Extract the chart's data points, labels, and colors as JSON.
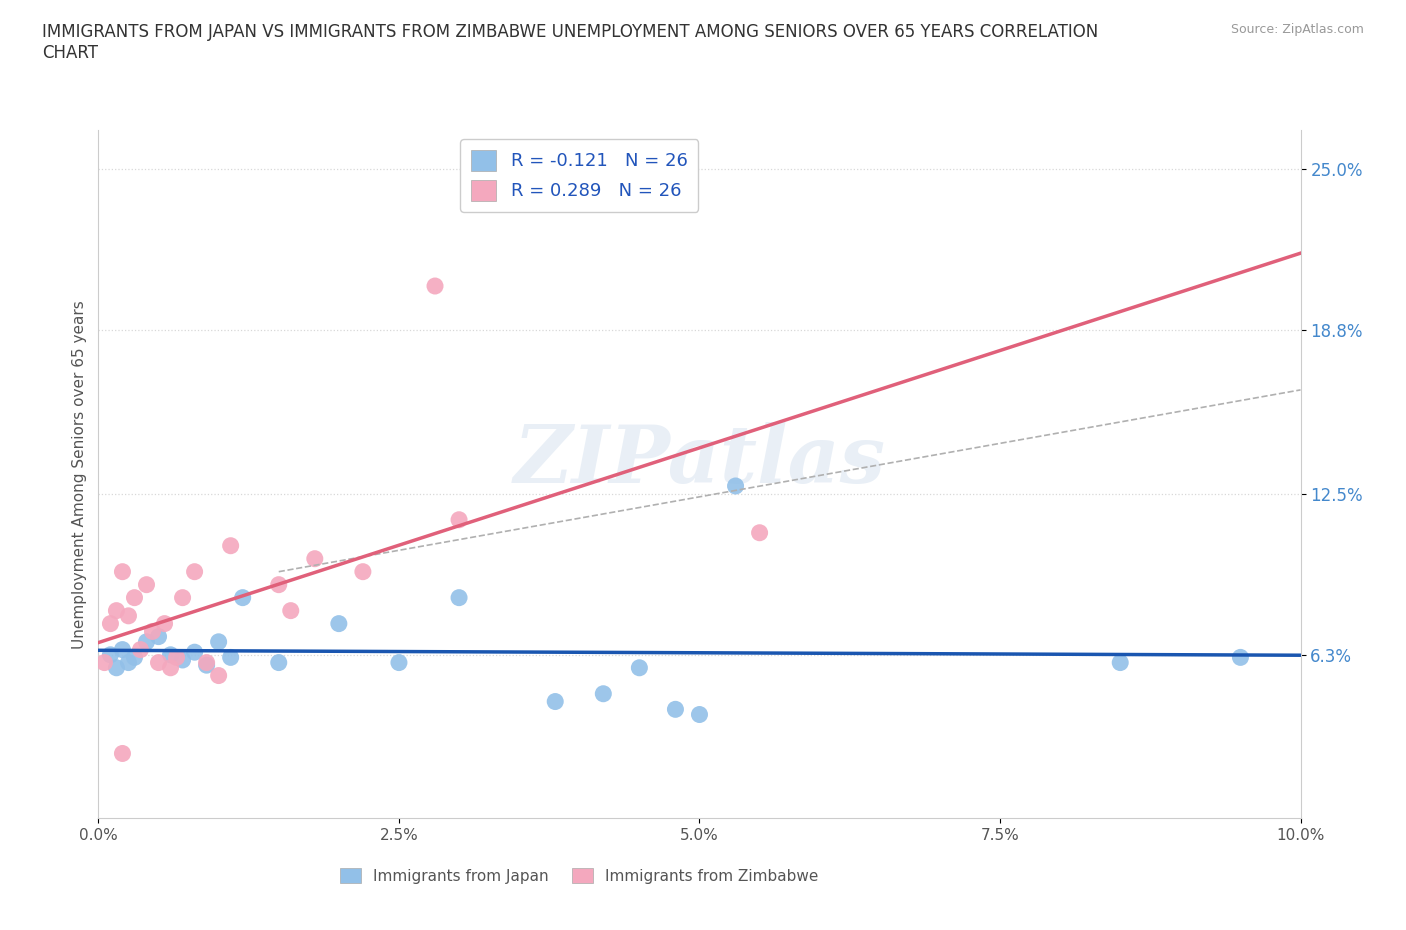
{
  "title": "IMMIGRANTS FROM JAPAN VS IMMIGRANTS FROM ZIMBABWE UNEMPLOYMENT AMONG SENIORS OVER 65 YEARS CORRELATION\nCHART",
  "source": "Source: ZipAtlas.com",
  "ylabel": "Unemployment Among Seniors over 65 years",
  "xlim": [
    0.0,
    10.0
  ],
  "ylim": [
    0.0,
    26.5
  ],
  "yticks": [
    6.3,
    12.5,
    18.8,
    25.0
  ],
  "xticks": [
    0.0,
    2.5,
    5.0,
    7.5,
    10.0
  ],
  "japan_R": -0.121,
  "japan_N": 26,
  "zimbabwe_R": 0.289,
  "zimbabwe_N": 26,
  "japan_color": "#92c0e8",
  "zimbabwe_color": "#f4a8be",
  "japan_line_color": "#1a56b0",
  "zimbabwe_line_color": "#e0607a",
  "japan_scatter_x": [
    0.1,
    0.15,
    0.2,
    0.25,
    0.3,
    0.4,
    0.5,
    0.6,
    0.7,
    0.8,
    0.9,
    1.0,
    1.1,
    1.2,
    1.5,
    2.0,
    2.5,
    3.0,
    3.8,
    4.2,
    4.5,
    4.8,
    5.0,
    5.3,
    8.5,
    9.5
  ],
  "japan_scatter_y": [
    6.3,
    5.8,
    6.5,
    6.0,
    6.2,
    6.8,
    7.0,
    6.3,
    6.1,
    6.4,
    5.9,
    6.8,
    6.2,
    8.5,
    6.0,
    7.5,
    6.0,
    8.5,
    4.5,
    4.8,
    5.8,
    4.2,
    4.0,
    12.8,
    6.0,
    6.2
  ],
  "zimbabwe_scatter_x": [
    0.05,
    0.1,
    0.15,
    0.2,
    0.25,
    0.3,
    0.35,
    0.4,
    0.45,
    0.5,
    0.55,
    0.6,
    0.65,
    0.7,
    0.8,
    0.9,
    1.0,
    1.1,
    1.5,
    1.6,
    1.8,
    2.2,
    2.8,
    3.0,
    5.5,
    0.2
  ],
  "zimbabwe_scatter_y": [
    6.0,
    7.5,
    8.0,
    9.5,
    7.8,
    8.5,
    6.5,
    9.0,
    7.2,
    6.0,
    7.5,
    5.8,
    6.2,
    8.5,
    9.5,
    6.0,
    5.5,
    10.5,
    9.0,
    8.0,
    10.0,
    9.5,
    20.5,
    11.5,
    11.0,
    2.5
  ],
  "dashed_line_x": [
    1.5,
    10.0
  ],
  "dashed_line_y": [
    9.5,
    16.5
  ],
  "watermark": "ZIPatlas",
  "background_color": "#ffffff",
  "grid_color": "#d8d8d8"
}
